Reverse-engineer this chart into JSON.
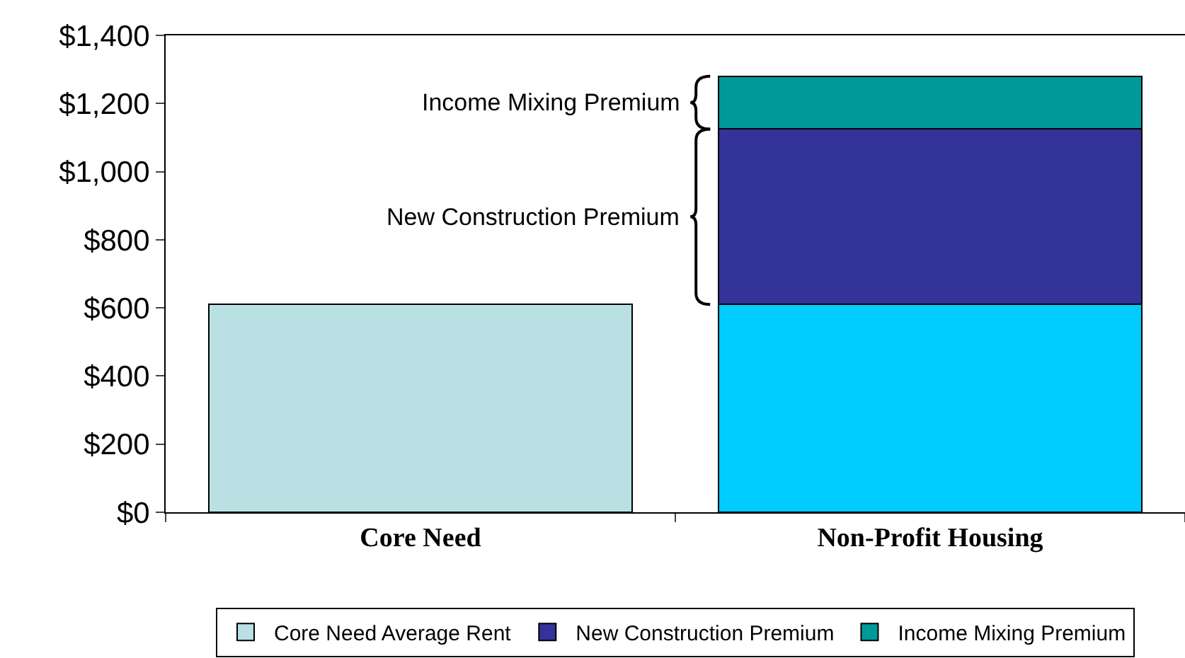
{
  "chart_data": {
    "type": "bar",
    "stacked": true,
    "categories": [
      "Core Need",
      "Non-Profit Housing"
    ],
    "series": [
      {
        "name": "Core Need Average Rent",
        "colors": [
          "#b9e0e3",
          "#00ccff"
        ],
        "values": [
          610,
          610
        ]
      },
      {
        "name": "New Construction Premium",
        "color": "#333399",
        "values": [
          null,
          515
        ]
      },
      {
        "name": "Income Mixing Premium",
        "color": "#009999",
        "values": [
          null,
          155
        ]
      }
    ],
    "ylim": [
      0,
      1400
    ],
    "yticks": [
      {
        "value": 0,
        "label": "$0"
      },
      {
        "value": 200,
        "label": "$200"
      },
      {
        "value": 400,
        "label": "$400"
      },
      {
        "value": 600,
        "label": "$600"
      },
      {
        "value": 800,
        "label": "$800"
      },
      {
        "value": 1000,
        "label": "$1,000"
      },
      {
        "value": 1200,
        "label": "$1,200"
      },
      {
        "value": 1400,
        "label": "$1,400"
      }
    ],
    "annotations": [
      "Income Mixing Premium",
      "New Construction Premium"
    ],
    "grid": false,
    "legend": "bottom"
  }
}
